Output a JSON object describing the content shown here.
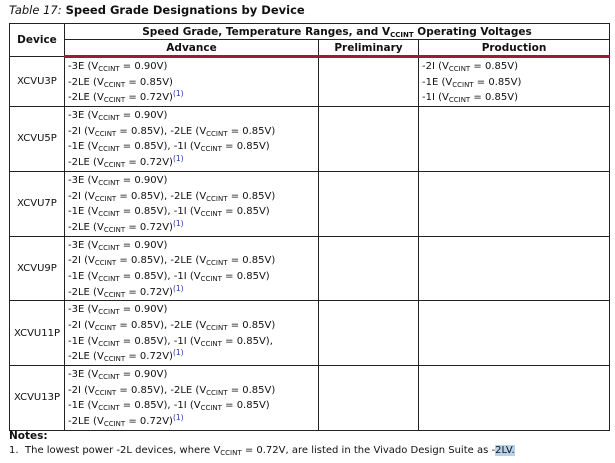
{
  "caption": {
    "label": "Table  17:",
    "title": "Speed Grade Designations by Device"
  },
  "vccint": {
    "main": "V",
    "sub": "CCINT"
  },
  "headers": {
    "device": "Device",
    "group_pre": "Speed Grade, Temperature Ranges, and ",
    "group_post": " Operating Voltages",
    "advance": "Advance",
    "preliminary": "Preliminary",
    "production": "Production"
  },
  "rows": [
    {
      "device": "XCVU3P",
      "advance": [
        {
          "items": [
            [
              "-3E",
              "0.90V"
            ]
          ]
        },
        {
          "items": [
            [
              "-2LE",
              "0.85V"
            ]
          ]
        },
        {
          "items": [
            [
              "-2LE",
              "0.72V"
            ]
          ],
          "note": "(1)"
        }
      ],
      "preliminary": [],
      "production": [
        {
          "items": [
            [
              "-2I",
              "0.85V"
            ]
          ]
        },
        {
          "items": [
            [
              "-1E",
              "0.85V"
            ]
          ]
        },
        {
          "items": [
            [
              "-1I",
              "0.85V"
            ]
          ]
        }
      ]
    },
    {
      "device": "XCVU5P",
      "advance": [
        {
          "items": [
            [
              "-3E",
              "0.90V"
            ]
          ]
        },
        {
          "items": [
            [
              "-2I",
              "0.85V"
            ],
            [
              "-2LE",
              "0.85V"
            ]
          ]
        },
        {
          "items": [
            [
              "-1E",
              "0.85V"
            ],
            [
              "-1I",
              "0.85V"
            ]
          ]
        },
        {
          "items": [
            [
              "-2LE",
              "0.72V"
            ]
          ],
          "note": "(1)"
        }
      ],
      "preliminary": [],
      "production": []
    },
    {
      "device": "XCVU7P",
      "advance": [
        {
          "items": [
            [
              "-3E",
              "0.90V"
            ]
          ]
        },
        {
          "items": [
            [
              "-2I",
              "0.85V"
            ],
            [
              "-2LE",
              "0.85V"
            ]
          ]
        },
        {
          "items": [
            [
              "-1E",
              "0.85V"
            ],
            [
              "-1I",
              "0.85V"
            ]
          ]
        },
        {
          "items": [
            [
              "-2LE",
              "0.72V"
            ]
          ],
          "note": "(1)"
        }
      ],
      "preliminary": [],
      "production": []
    },
    {
      "device": "XCVU9P",
      "advance": [
        {
          "items": [
            [
              "-3E",
              "0.90V"
            ]
          ]
        },
        {
          "items": [
            [
              "-2I",
              "0.85V"
            ],
            [
              "-2LE",
              "0.85V"
            ]
          ]
        },
        {
          "items": [
            [
              "-1E",
              "0.85V"
            ],
            [
              "-1I",
              "0.85V"
            ]
          ]
        },
        {
          "items": [
            [
              "-2LE",
              "0.72V"
            ]
          ],
          "note": "(1)"
        }
      ],
      "preliminary": [],
      "production": []
    },
    {
      "device": "XCVU11P",
      "advance": [
        {
          "items": [
            [
              "-3E",
              "0.90V"
            ]
          ]
        },
        {
          "items": [
            [
              "-2I",
              "0.85V"
            ],
            [
              "-2LE",
              "0.85V"
            ]
          ]
        },
        {
          "items": [
            [
              "-1E",
              "0.85V"
            ],
            [
              "-1I",
              "0.85V"
            ]
          ],
          "trailing": ","
        },
        {
          "items": [
            [
              "-2LE",
              "0.72V"
            ]
          ],
          "note": "(1)"
        }
      ],
      "preliminary": [],
      "production": []
    },
    {
      "device": "XCVU13P",
      "advance": [
        {
          "items": [
            [
              "-3E",
              "0.90V"
            ]
          ]
        },
        {
          "items": [
            [
              "-2I",
              "0.85V"
            ],
            [
              "-2LE",
              "0.85V"
            ]
          ]
        },
        {
          "items": [
            [
              "-1E",
              "0.85V"
            ],
            [
              "-1I",
              "0.85V"
            ]
          ]
        },
        {
          "items": [
            [
              "-2LE",
              "0.72V"
            ]
          ],
          "note": "(1)"
        }
      ],
      "preliminary": [],
      "production": []
    }
  ],
  "notes": {
    "heading": "Notes:",
    "items": [
      {
        "num": "1.",
        "pre": "The lowest power -2L devices, where ",
        "post": " = 0.72V, are listed in the Vivado Design Suite as ",
        "dash": "-",
        "highlight": "2LV."
      }
    ]
  },
  "colors": {
    "header_rule": "#9c1a3a",
    "footnote_ref": "#2233aa",
    "selection": "#b7d3ec"
  }
}
